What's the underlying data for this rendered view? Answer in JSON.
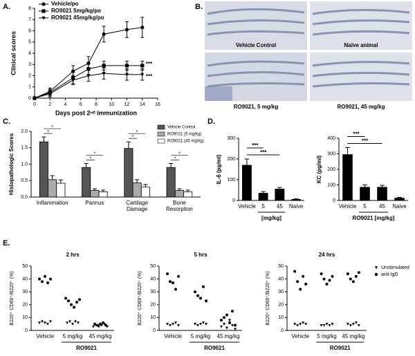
{
  "panels": [
    "A.",
    "B.",
    "C.",
    "D.",
    "E."
  ],
  "images": {
    "captions": [
      "Vehicle Control",
      "Naïve animal",
      "RO9021, 5 mg/kg",
      "RO9021, 45 mg/kg"
    ]
  },
  "chart_data": [
    {
      "type": "line",
      "xlabel": "Days post 2ⁿᵈ immunization",
      "ylabel": "Clinical scores",
      "x": [
        0,
        2,
        5,
        7,
        9,
        12,
        14
      ],
      "xlim": [
        0,
        16
      ],
      "xticks": [
        0,
        2,
        4,
        6,
        8,
        10,
        12,
        14,
        16
      ],
      "ylim": [
        0,
        8
      ],
      "yticks": [
        0,
        1,
        2,
        3,
        4,
        5,
        6,
        7,
        8
      ],
      "legend": "upper left",
      "series": [
        {
          "name": "Vehicle/po",
          "color": "#000",
          "marker": "circle",
          "values": [
            0,
            0.6,
            2.4,
            3.1,
            5.7,
            6.1,
            6.3
          ],
          "errors": [
            0,
            0.3,
            0.5,
            0.6,
            0.7,
            0.7,
            0.9
          ]
        },
        {
          "name": "RO9021 5mg/kg/po",
          "color": "#000",
          "marker": "square",
          "values": [
            0,
            0.5,
            1.8,
            2.6,
            2.9,
            2.9,
            2.9
          ],
          "errors": [
            0,
            0.3,
            0.5,
            0.5,
            0.4,
            0.4,
            0.4
          ]
        },
        {
          "name": "RO9021 45mg/kg/po",
          "color": "#000",
          "marker": "triangle",
          "values": [
            0,
            0.4,
            1.6,
            2.0,
            2.2,
            2.1,
            2.1
          ],
          "errors": [
            0,
            0.3,
            0.4,
            0.5,
            0.5,
            0.5,
            0.5
          ]
        }
      ],
      "annotations": [
        "***",
        "***"
      ]
    },
    {
      "type": "bar",
      "ylabel": "Histopathologic Scores",
      "categories": [
        [
          "Inflammation"
        ],
        [
          "Pannus"
        ],
        [
          "Cartilage",
          "Damage"
        ],
        [
          "Bone",
          "Resorption"
        ]
      ],
      "ylim": [
        0,
        2
      ],
      "yticks": [
        {
          "value": 0,
          "label": "0.0"
        },
        0.5,
        {
          "value": 1,
          "label": "1.0"
        },
        1.5,
        {
          "value": 2,
          "label": "2.0"
        }
      ],
      "legend": "upper right",
      "series": [
        {
          "name": "Vehicle Control",
          "color": "#555",
          "values": [
            1.68,
            0.9,
            1.48,
            0.9
          ],
          "errors": [
            0.15,
            0.12,
            0.2,
            0.12
          ]
        },
        {
          "name": "RO9021 (5 mg/kg)",
          "color": "#aaa",
          "values": [
            0.53,
            0.2,
            0.43,
            0.2
          ],
          "errors": [
            0.12,
            0.05,
            0.1,
            0.05
          ]
        },
        {
          "name": "RO9021 (45 mg/kg)",
          "color": "#fff",
          "values": [
            0.42,
            0.16,
            0.3,
            0.16
          ],
          "errors": [
            0.1,
            0.05,
            0.08,
            0.05
          ]
        }
      ],
      "significance": [
        [
          "*",
          "*"
        ],
        [
          "*",
          "*"
        ],
        [
          "*",
          "*"
        ],
        [
          "*",
          "*"
        ]
      ]
    },
    {
      "type": "bar",
      "ylabel": "IL-6 (pg/ml)",
      "categories": [
        "Vehicle",
        "5",
        "45",
        "Naive"
      ],
      "values": [
        170,
        35,
        55,
        5
      ],
      "errors": [
        30,
        8,
        8,
        3
      ],
      "color": "#000",
      "ylim": [
        0,
        300
      ],
      "yticks": [
        0,
        100,
        200,
        300
      ],
      "group_label": "[mg/kg]",
      "significance": [
        "***",
        "***"
      ]
    },
    {
      "type": "bar",
      "ylabel": "KC (pg/ml)",
      "categories": [
        "Vehicle",
        "5",
        "45",
        "Naive"
      ],
      "values": [
        295,
        85,
        85,
        15
      ],
      "errors": [
        45,
        15,
        12,
        5
      ],
      "color": "#000",
      "ylim": [
        0,
        400
      ],
      "yticks": [
        0,
        100,
        200,
        300,
        400
      ],
      "group_label": "RO9021 [mg/kg]",
      "significance": [
        "***",
        "***"
      ]
    },
    {
      "type": "dot",
      "title": "2 hrs",
      "ylabel": "B220⁺ CD69⁺/B220⁺ (%)",
      "categories": [
        "Vehicle",
        "5 mg/kg",
        "45 mg/kg"
      ],
      "ylim": [
        0,
        50
      ],
      "yticks": [
        0,
        10,
        20,
        30,
        40,
        50
      ],
      "group_label": "RO9021",
      "series": [
        {
          "marker": "triangle",
          "color": "#000",
          "values": [
            [
              6,
              7,
              6,
              5,
              7
            ],
            [
              6,
              7,
              5,
              7,
              6
            ],
            [
              3,
              4,
              3,
              4,
              5,
              3
            ]
          ]
        },
        {
          "marker": "circle",
          "color": "#000",
          "values": [
            [
              40,
              38,
              42,
              37,
              40
            ],
            [
              25,
              23,
              20,
              18,
              22,
              24
            ],
            [
              5,
              4,
              5,
              6,
              4
            ]
          ]
        }
      ]
    },
    {
      "type": "dot",
      "title": "5 hrs",
      "ylabel": "B220⁺ CD69⁺/B220⁺ (%)",
      "categories": [
        "Vehicle",
        "5 mg/kg",
        "45 mg/kg"
      ],
      "ylim": [
        0,
        50
      ],
      "yticks": [
        0,
        10,
        20,
        30,
        40,
        50
      ],
      "group_label": "RO9021",
      "series": [
        {
          "marker": "triangle",
          "color": "#000",
          "values": [
            [
              5,
              4,
              5,
              6,
              4
            ],
            [
              5,
              4,
              5,
              6,
              5
            ],
            [
              3,
              5,
              2,
              8,
              4,
              1
            ]
          ]
        },
        {
          "marker": "circle",
          "color": "#000",
          "values": [
            [
              44,
              38,
              37,
              32,
              42
            ],
            [
              30,
              27,
              25,
              34,
              23
            ],
            [
              8,
              10,
              12,
              6,
              15,
              4
            ]
          ]
        }
      ]
    },
    {
      "type": "dot",
      "title": "24 hrs",
      "ylabel": "B220⁺ CD69⁺/B220⁺ (%)",
      "categories": [
        "Vehicle",
        "5 mg/kg",
        "45 mg/kg"
      ],
      "ylim": [
        0,
        50
      ],
      "yticks": [
        0,
        10,
        20,
        30,
        40,
        50
      ],
      "group_label": "RO9021",
      "legend": "right",
      "series": [
        {
          "name": "Unstimulated",
          "marker": "triangle",
          "color": "#000",
          "values": [
            [
              5,
              4,
              5,
              6,
              5
            ],
            [
              4,
              4,
              5,
              4,
              5
            ],
            [
              5,
              4,
              5,
              6,
              4
            ]
          ]
        },
        {
          "name": "anti-IgD",
          "marker": "circle",
          "color": "#000",
          "values": [
            [
              46,
              38,
              32,
              42,
              36
            ],
            [
              44,
              40,
              36,
              39,
              42
            ],
            [
              44,
              40,
              38,
              42,
              45
            ]
          ]
        }
      ]
    }
  ]
}
